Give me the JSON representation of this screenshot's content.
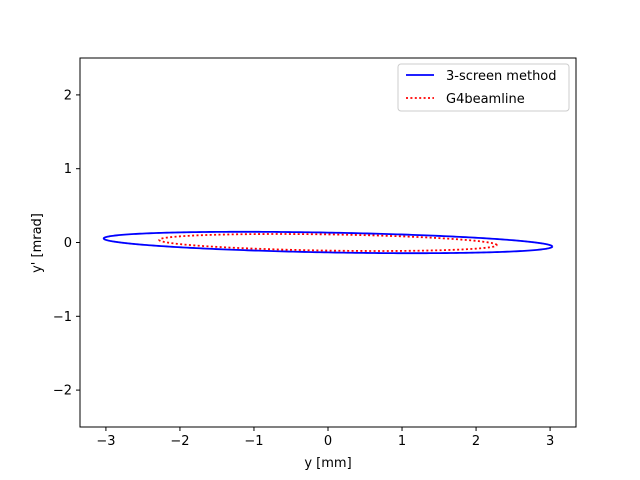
{
  "chart_data": {
    "type": "line",
    "xlabel": "y [mm]",
    "ylabel": "y' [mrad]",
    "xlim": [
      -3.35,
      3.35
    ],
    "ylim": [
      -2.5,
      2.5
    ],
    "xticks": [
      -3,
      -2,
      -1,
      0,
      1,
      2,
      3
    ],
    "xtick_labels": [
      "−3",
      "−2",
      "−1",
      "0",
      "1",
      "2",
      "3"
    ],
    "yticks": [
      -2,
      -1,
      0,
      1,
      2
    ],
    "ytick_labels": [
      "−2",
      "−1",
      "0",
      "1",
      "2"
    ],
    "grid": false,
    "legend_position": "top-right",
    "series": [
      {
        "name": "3-screen method",
        "color": "#0000ff",
        "style": "solid",
        "ellipse": {
          "center": [
            0,
            0
          ],
          "x_extent": 3.03,
          "xp_at_x_extent": -0.055,
          "y_extent": 0.145
        }
      },
      {
        "name": "G4beamline",
        "color": "#ff0000",
        "style": "dotted",
        "ellipse": {
          "center": [
            0,
            0
          ],
          "x_extent": 2.28,
          "xp_at_x_extent": -0.035,
          "y_extent": 0.115
        }
      }
    ]
  }
}
